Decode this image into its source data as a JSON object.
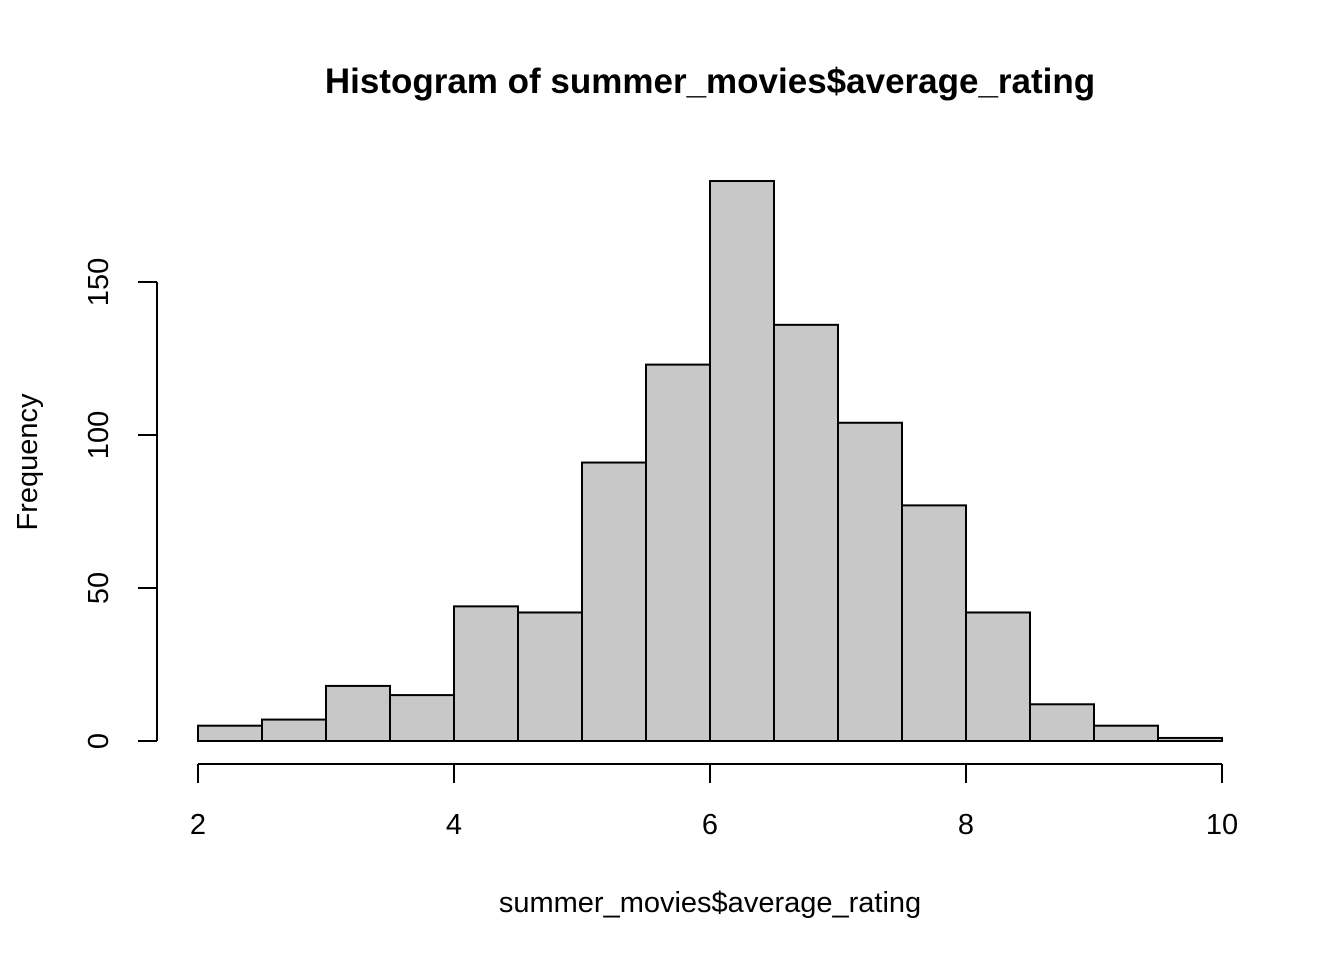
{
  "chart_data": {
    "type": "bar",
    "title": "Histogram of summer_movies$average_rating",
    "xlabel": "summer_movies$average_rating",
    "ylabel": "Frequency",
    "bin_edges": [
      2,
      2.5,
      3,
      3.5,
      4,
      4.5,
      5,
      5.5,
      6,
      6.5,
      7,
      7.5,
      8,
      8.5,
      9,
      9.5,
      10
    ],
    "values": [
      5,
      7,
      18,
      15,
      44,
      42,
      91,
      123,
      183,
      136,
      104,
      77,
      42,
      12,
      5,
      1
    ],
    "xlim": [
      2,
      10
    ],
    "ylim": [
      0,
      150
    ],
    "x_ticks": [
      "2",
      "4",
      "6",
      "8",
      "10"
    ],
    "y_ticks": [
      "0",
      "50",
      "100",
      "150"
    ],
    "bar_color": "#c8c8c8",
    "edge_color": "#000000",
    "grid": false,
    "legend": "none"
  }
}
